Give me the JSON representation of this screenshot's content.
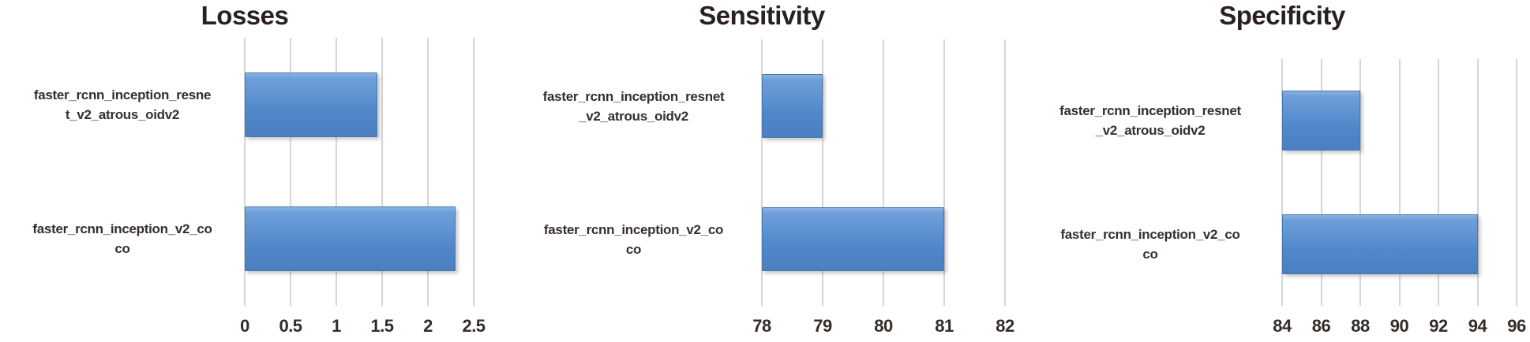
{
  "figure": {
    "description": "Three horizontal bar charts comparing two object detection models",
    "titles": [
      "Losses",
      "Sensitivity",
      "Specificity"
    ]
  },
  "chart_data": [
    {
      "type": "bar",
      "orientation": "horizontal",
      "title": "Losses",
      "categories": [
        "faster_rcnn_inception_resne\nt_v2_atrous_oidv2",
        "faster_rcnn_inception_v2_co\nco"
      ],
      "values": [
        1.45,
        2.3
      ],
      "ticks": [
        "0",
        "0.5",
        "1",
        "1.5",
        "2",
        "2.5"
      ],
      "axis": {
        "min": 0,
        "max": 2.5
      },
      "xlabel": "",
      "ylabel": "",
      "grid": true,
      "legend": false
    },
    {
      "type": "bar",
      "orientation": "horizontal",
      "title": "Sensitivity",
      "categories": [
        "faster_rcnn_inception_resnet\n_v2_atrous_oidv2",
        "faster_rcnn_inception_v2_co\nco"
      ],
      "values": [
        79,
        81
      ],
      "ticks": [
        "78",
        "79",
        "80",
        "81",
        "82"
      ],
      "axis": {
        "min": 78,
        "max": 82
      },
      "xlabel": "",
      "ylabel": "",
      "grid": true,
      "legend": false
    },
    {
      "type": "bar",
      "orientation": "horizontal",
      "title": "Specificity",
      "categories": [
        "faster_rcnn_inception_resnet\n_v2_atrous_oidv2",
        "faster_rcnn_inception_v2_co\nco"
      ],
      "values": [
        88,
        94
      ],
      "ticks": [
        "84",
        "86",
        "88",
        "90",
        "92",
        "94",
        "96"
      ],
      "axis": {
        "min": 84,
        "max": 96
      },
      "xlabel": "",
      "ylabel": "",
      "grid": true,
      "legend": false
    }
  ],
  "colors": {
    "bar_top": "#6f9fda",
    "bar_mid": "#5289cb",
    "bar_bottom": "#4a7fc0",
    "bar_border": "#4978ad",
    "gridline": "#d8d5d2",
    "tick_text": "#332c28",
    "label_text": "#362f2b",
    "title_text": "#282120",
    "background": "#ffffff"
  }
}
